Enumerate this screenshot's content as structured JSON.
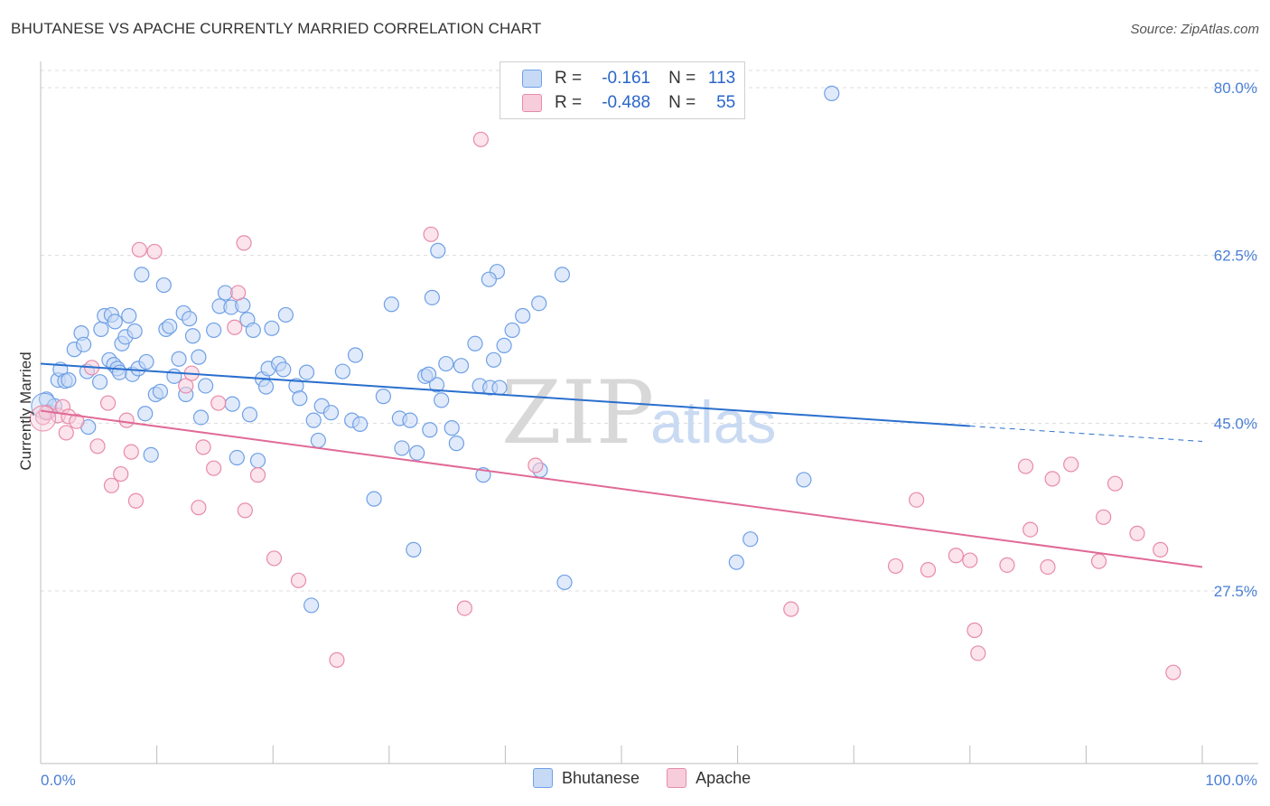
{
  "header": {
    "title": "BHUTANESE VS APACHE CURRENTLY MARRIED CORRELATION CHART",
    "source": "Source: ZipAtlas.com"
  },
  "legend": {
    "rows": [
      {
        "r_label": "R =",
        "r_value": "-0.161",
        "n_label": "N =",
        "n_value": "113"
      },
      {
        "r_label": "R =",
        "r_value": "-0.488",
        "n_label": "N =",
        "n_value": "55"
      }
    ],
    "items": [
      "Bhutanese",
      "Apache"
    ]
  },
  "watermark": {
    "zip": "ZIP",
    "atlas": "atlas"
  },
  "colors": {
    "bhutanese": "#6fa0e6",
    "bhutanese_fill": "#c6d9f5",
    "apache": "#e88aaa",
    "apache_fill": "#f7cddb",
    "blue_line": "#2a6fce",
    "pink_line": "#e06a96"
  },
  "chart_data": {
    "type": "scatter",
    "title": "BHUTANESE VS APACHE CURRENTLY MARRIED CORRELATION CHART",
    "xlabel": "",
    "ylabel": "Currently Married",
    "xlim": [
      0,
      100
    ],
    "ylim": [
      9.5,
      82
    ],
    "x_tick_labels": [
      "0.0%",
      "100.0%"
    ],
    "y_ticks": [
      27.5,
      45.0,
      62.5,
      80.0
    ],
    "y_tick_labels": [
      "27.5%",
      "45.0%",
      "62.5%",
      "80.0%"
    ],
    "series": [
      {
        "name": "Bhutanese",
        "r": -0.161,
        "n": 113,
        "trend": {
          "x0": 0,
          "y0": 51.2,
          "x1": 80,
          "y1": 44.7,
          "dashed_to_x": 100,
          "dashed_to_y": 43.1
        },
        "points": [
          [
            0.5,
            47.5
          ],
          [
            0.7,
            46.2
          ],
          [
            1.2,
            46.8
          ],
          [
            1.5,
            49.5
          ],
          [
            1.7,
            50.6
          ],
          [
            2.1,
            49.4
          ],
          [
            2.4,
            49.5
          ],
          [
            2.9,
            52.7
          ],
          [
            3.5,
            54.4
          ],
          [
            3.7,
            53.2
          ],
          [
            4.0,
            50.4
          ],
          [
            4.1,
            44.6
          ],
          [
            5.1,
            49.3
          ],
          [
            5.2,
            54.8
          ],
          [
            5.5,
            56.2
          ],
          [
            5.9,
            51.6
          ],
          [
            6.1,
            56.3
          ],
          [
            6.4,
            55.6
          ],
          [
            6.3,
            51.1
          ],
          [
            6.6,
            50.7
          ],
          [
            6.8,
            50.3
          ],
          [
            7.0,
            53.3
          ],
          [
            7.3,
            54.0
          ],
          [
            7.6,
            56.2
          ],
          [
            7.9,
            50.1
          ],
          [
            8.1,
            54.6
          ],
          [
            8.4,
            50.7
          ],
          [
            8.7,
            60.5
          ],
          [
            9.0,
            46.0
          ],
          [
            9.1,
            51.4
          ],
          [
            9.5,
            41.7
          ],
          [
            9.9,
            48.0
          ],
          [
            10.3,
            48.3
          ],
          [
            10.6,
            59.4
          ],
          [
            10.8,
            54.8
          ],
          [
            11.1,
            55.1
          ],
          [
            11.5,
            49.9
          ],
          [
            11.9,
            51.7
          ],
          [
            12.3,
            56.5
          ],
          [
            12.5,
            48.0
          ],
          [
            12.8,
            55.9
          ],
          [
            13.1,
            54.1
          ],
          [
            13.6,
            51.9
          ],
          [
            13.8,
            45.6
          ],
          [
            14.2,
            48.9
          ],
          [
            14.9,
            54.7
          ],
          [
            15.4,
            57.2
          ],
          [
            15.9,
            58.6
          ],
          [
            16.4,
            57.1
          ],
          [
            16.5,
            47.0
          ],
          [
            16.9,
            41.4
          ],
          [
            17.4,
            57.3
          ],
          [
            17.8,
            55.8
          ],
          [
            18.0,
            45.9
          ],
          [
            18.3,
            54.7
          ],
          [
            18.7,
            41.1
          ],
          [
            19.1,
            49.6
          ],
          [
            19.4,
            48.8
          ],
          [
            19.6,
            50.7
          ],
          [
            19.9,
            54.9
          ],
          [
            20.5,
            51.2
          ],
          [
            20.9,
            50.6
          ],
          [
            21.1,
            56.3
          ],
          [
            22.0,
            48.9
          ],
          [
            22.3,
            47.6
          ],
          [
            22.9,
            50.3
          ],
          [
            23.5,
            45.3
          ],
          [
            23.9,
            43.2
          ],
          [
            24.2,
            46.8
          ],
          [
            25.0,
            46.1
          ],
          [
            26.0,
            50.4
          ],
          [
            26.8,
            45.3
          ],
          [
            27.1,
            52.1
          ],
          [
            27.5,
            44.9
          ],
          [
            28.7,
            37.1
          ],
          [
            29.5,
            47.8
          ],
          [
            30.2,
            57.4
          ],
          [
            30.9,
            45.5
          ],
          [
            31.1,
            42.4
          ],
          [
            31.8,
            45.3
          ],
          [
            32.1,
            31.8
          ],
          [
            32.4,
            41.9
          ],
          [
            33.1,
            49.9
          ],
          [
            33.5,
            44.3
          ],
          [
            34.1,
            49.0
          ],
          [
            34.5,
            47.4
          ],
          [
            34.9,
            51.2
          ],
          [
            35.4,
            44.5
          ],
          [
            35.8,
            42.9
          ],
          [
            36.2,
            51.0
          ],
          [
            37.4,
            53.3
          ],
          [
            37.8,
            48.9
          ],
          [
            38.1,
            39.6
          ],
          [
            38.7,
            48.7
          ],
          [
            39.0,
            51.6
          ],
          [
            39.3,
            60.8
          ],
          [
            39.5,
            48.7
          ],
          [
            39.9,
            53.1
          ],
          [
            40.6,
            54.7
          ],
          [
            41.5,
            56.2
          ],
          [
            42.9,
            57.5
          ],
          [
            43.0,
            40.1
          ],
          [
            44.9,
            60.5
          ],
          [
            45.1,
            28.4
          ],
          [
            61.1,
            32.9
          ],
          [
            68.1,
            79.4
          ],
          [
            59.9,
            30.5
          ],
          [
            65.7,
            39.1
          ],
          [
            34.2,
            63.0
          ],
          [
            33.4,
            50.1
          ],
          [
            23.3,
            26.0
          ],
          [
            33.7,
            58.1
          ],
          [
            38.6,
            60.0
          ]
        ]
      },
      {
        "name": "Apache",
        "r": -0.488,
        "n": 55,
        "trend": {
          "x0": 0,
          "y0": 46.3,
          "x1": 100,
          "y1": 30.0
        },
        "points": [
          [
            0.2,
            45.6
          ],
          [
            0.5,
            46.1
          ],
          [
            1.5,
            45.8
          ],
          [
            1.9,
            46.7
          ],
          [
            2.2,
            44.0
          ],
          [
            2.4,
            45.7
          ],
          [
            3.1,
            45.2
          ],
          [
            4.4,
            50.8
          ],
          [
            4.9,
            42.6
          ],
          [
            5.8,
            47.1
          ],
          [
            6.1,
            38.5
          ],
          [
            6.9,
            39.7
          ],
          [
            7.4,
            45.3
          ],
          [
            7.8,
            42.0
          ],
          [
            8.2,
            36.9
          ],
          [
            8.5,
            63.1
          ],
          [
            9.8,
            62.9
          ],
          [
            12.5,
            48.9
          ],
          [
            13.0,
            50.2
          ],
          [
            13.6,
            36.2
          ],
          [
            14.0,
            42.5
          ],
          [
            14.9,
            40.3
          ],
          [
            15.3,
            47.1
          ],
          [
            16.7,
            55.0
          ],
          [
            17.0,
            58.6
          ],
          [
            17.5,
            63.8
          ],
          [
            17.6,
            35.9
          ],
          [
            18.7,
            39.6
          ],
          [
            20.1,
            30.9
          ],
          [
            22.2,
            28.6
          ],
          [
            25.5,
            20.3
          ],
          [
            33.6,
            64.7
          ],
          [
            36.5,
            25.7
          ],
          [
            37.9,
            74.6
          ],
          [
            42.6,
            40.6
          ],
          [
            64.6,
            25.6
          ],
          [
            75.4,
            37.0
          ],
          [
            76.4,
            29.7
          ],
          [
            78.8,
            31.2
          ],
          [
            80.0,
            30.7
          ],
          [
            80.4,
            23.4
          ],
          [
            84.8,
            40.5
          ],
          [
            85.2,
            33.9
          ],
          [
            86.7,
            30.0
          ],
          [
            87.1,
            39.2
          ],
          [
            88.7,
            40.7
          ],
          [
            91.1,
            30.6
          ],
          [
            91.5,
            35.2
          ],
          [
            92.5,
            38.7
          ],
          [
            94.4,
            33.5
          ],
          [
            96.4,
            31.8
          ],
          [
            97.5,
            19.0
          ],
          [
            73.6,
            30.1
          ],
          [
            80.7,
            21.0
          ],
          [
            83.2,
            30.2
          ]
        ]
      }
    ]
  }
}
